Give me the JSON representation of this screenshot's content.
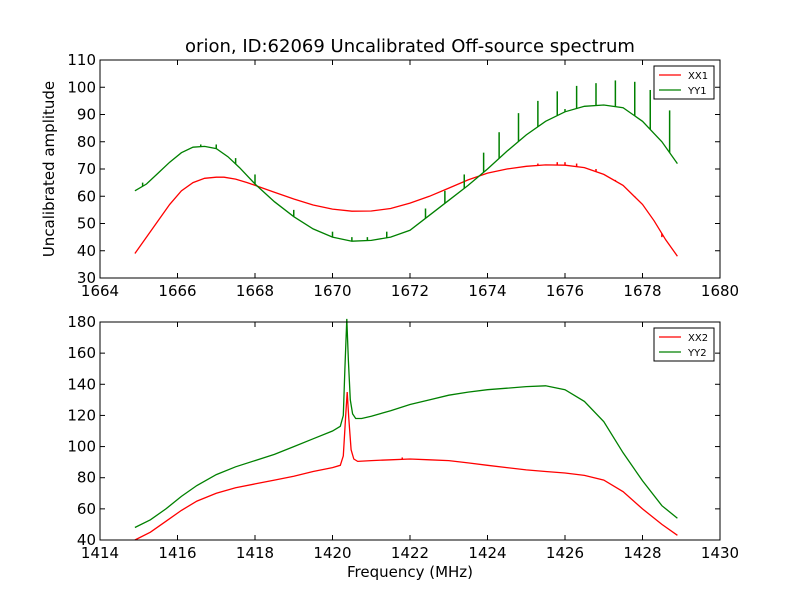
{
  "figure": {
    "title": "orion, ID:62069 Uncalibrated Off-source spectrum"
  },
  "chart_data": [
    {
      "type": "line",
      "title": "orion, ID:62069 Uncalibrated Off-source spectrum",
      "xlabel": "",
      "ylabel": "Uncalibrated amplitude",
      "xlim": [
        1664,
        1680
      ],
      "ylim": [
        30,
        110
      ],
      "xticks": [
        1664,
        1666,
        1668,
        1670,
        1672,
        1674,
        1676,
        1678,
        1680
      ],
      "yticks": [
        30,
        40,
        50,
        60,
        70,
        80,
        90,
        100,
        110
      ],
      "legend": "top-right",
      "grid": false,
      "series": [
        {
          "name": "XX1",
          "color": "#ff0000",
          "x": [
            1664.9,
            1665.2,
            1665.5,
            1665.8,
            1666.1,
            1666.4,
            1666.7,
            1667.0,
            1667.2,
            1667.5,
            1667.8,
            1668.1,
            1668.5,
            1669.0,
            1669.5,
            1670.0,
            1670.5,
            1671.0,
            1671.5,
            1672.0,
            1672.5,
            1673.0,
            1673.5,
            1674.0,
            1674.5,
            1675.0,
            1675.5,
            1676.0,
            1676.5,
            1677.0,
            1677.5,
            1678.0,
            1678.3,
            1678.6,
            1678.9
          ],
          "y": [
            39,
            45,
            51,
            57,
            62,
            65,
            66.6,
            67,
            67,
            66.3,
            65,
            63.5,
            61.5,
            59,
            56.8,
            55.3,
            54.5,
            54.6,
            55.5,
            57.5,
            60,
            63,
            66,
            68.5,
            70,
            71,
            71.5,
            71.4,
            70.5,
            68,
            64,
            57,
            51,
            44,
            38
          ],
          "spikes": [
            {
              "x": 1675.3,
              "y": 72
            },
            {
              "x": 1675.8,
              "y": 72.5
            },
            {
              "x": 1676.0,
              "y": 72.5
            },
            {
              "x": 1676.3,
              "y": 72
            },
            {
              "x": 1676.8,
              "y": 70
            },
            {
              "x": 1677.3,
              "y": 66
            },
            {
              "x": 1677.8,
              "y": 60
            },
            {
              "x": 1678.2,
              "y": 53
            },
            {
              "x": 1678.5,
              "y": 45
            }
          ]
        },
        {
          "name": "YY1",
          "color": "#008000",
          "x": [
            1664.9,
            1665.2,
            1665.5,
            1665.8,
            1666.1,
            1666.4,
            1666.7,
            1667.0,
            1667.3,
            1667.6,
            1668.0,
            1668.5,
            1669.0,
            1669.5,
            1670.0,
            1670.5,
            1671.0,
            1671.5,
            1672.0,
            1672.5,
            1673.0,
            1673.5,
            1674.0,
            1674.5,
            1675.0,
            1675.5,
            1676.0,
            1676.5,
            1677.0,
            1677.5,
            1678.0,
            1678.5,
            1678.9
          ],
          "y": [
            62,
            64.5,
            68.5,
            72.5,
            76,
            78,
            78.3,
            77.5,
            74.5,
            70.5,
            64.5,
            58,
            52.5,
            48,
            45,
            43.5,
            43.8,
            45,
            47.5,
            53,
            58.5,
            64,
            70,
            76.5,
            82.5,
            87.5,
            91,
            93,
            93.5,
            92.5,
            87.5,
            80,
            72
          ],
          "spikes": [
            {
              "x": 1665.1,
              "y": 65
            },
            {
              "x": 1666.6,
              "y": 79
            },
            {
              "x": 1667.0,
              "y": 79
            },
            {
              "x": 1667.5,
              "y": 74
            },
            {
              "x": 1668.0,
              "y": 68
            },
            {
              "x": 1669.0,
              "y": 55
            },
            {
              "x": 1670.0,
              "y": 47
            },
            {
              "x": 1670.5,
              "y": 45
            },
            {
              "x": 1670.9,
              "y": 45
            },
            {
              "x": 1671.4,
              "y": 47
            },
            {
              "x": 1672.4,
              "y": 55.5
            },
            {
              "x": 1672.9,
              "y": 62
            },
            {
              "x": 1673.4,
              "y": 68
            },
            {
              "x": 1673.9,
              "y": 76
            },
            {
              "x": 1674.3,
              "y": 83.5
            },
            {
              "x": 1674.8,
              "y": 90.5
            },
            {
              "x": 1675.3,
              "y": 95
            },
            {
              "x": 1675.8,
              "y": 98.5
            },
            {
              "x": 1676.3,
              "y": 100.5
            },
            {
              "x": 1676.8,
              "y": 101.5
            },
            {
              "x": 1677.3,
              "y": 102.5
            },
            {
              "x": 1677.8,
              "y": 102
            },
            {
              "x": 1678.2,
              "y": 99
            },
            {
              "x": 1678.7,
              "y": 91.5
            },
            {
              "x": 1676.0,
              "y": 92
            }
          ]
        }
      ]
    },
    {
      "type": "line",
      "title": "",
      "xlabel": "Frequency (MHz)",
      "ylabel": "",
      "xlim": [
        1414,
        1430
      ],
      "ylim": [
        40,
        180
      ],
      "xticks": [
        1414,
        1416,
        1418,
        1420,
        1422,
        1424,
        1426,
        1428,
        1430
      ],
      "yticks": [
        40,
        60,
        80,
        100,
        120,
        140,
        160,
        180
      ],
      "legend": "top-right",
      "grid": false,
      "series": [
        {
          "name": "XX2",
          "color": "#ff0000",
          "x": [
            1414.9,
            1415.3,
            1415.7,
            1416.1,
            1416.5,
            1417.0,
            1417.5,
            1418.0,
            1418.5,
            1419.0,
            1419.5,
            1420.0,
            1420.2,
            1420.28,
            1420.34,
            1420.38,
            1420.42,
            1420.48,
            1420.55,
            1420.65,
            1421.0,
            1421.5,
            1422.0,
            1422.5,
            1423.0,
            1423.5,
            1424.0,
            1424.5,
            1425.0,
            1425.5,
            1426.0,
            1426.5,
            1427.0,
            1427.5,
            1428.0,
            1428.5,
            1428.9
          ],
          "y": [
            40,
            45,
            52,
            59,
            65,
            70,
            73.5,
            76,
            78.5,
            81,
            84,
            86.5,
            88,
            94,
            120,
            135,
            118,
            98,
            92,
            90.5,
            91,
            91.5,
            92,
            91.5,
            91,
            89.5,
            88,
            86.5,
            85,
            84,
            83,
            81.5,
            78.5,
            71,
            60,
            50,
            43
          ],
          "spikes": [
            {
              "x": 1421.8,
              "y": 93
            }
          ]
        },
        {
          "name": "YY2",
          "color": "#008000",
          "x": [
            1414.9,
            1415.3,
            1415.7,
            1416.1,
            1416.5,
            1417.0,
            1417.5,
            1418.0,
            1418.5,
            1419.0,
            1419.5,
            1420.0,
            1420.2,
            1420.28,
            1420.32,
            1420.37,
            1420.41,
            1420.46,
            1420.52,
            1420.6,
            1420.75,
            1421.0,
            1421.5,
            1422.0,
            1422.5,
            1423.0,
            1423.5,
            1424.0,
            1424.5,
            1425.0,
            1425.5,
            1426.0,
            1426.5,
            1427.0,
            1427.5,
            1428.0,
            1428.5,
            1428.9
          ],
          "y": [
            48,
            53,
            60,
            68,
            75,
            82,
            87,
            91,
            95,
            100,
            105,
            110,
            113,
            120,
            150,
            182,
            155,
            130,
            121,
            118,
            118,
            119.5,
            123,
            127,
            130,
            133,
            135,
            136.5,
            137.5,
            138.5,
            139,
            136.5,
            129,
            116,
            96,
            78,
            62,
            54
          ],
          "spikes": []
        }
      ]
    }
  ]
}
